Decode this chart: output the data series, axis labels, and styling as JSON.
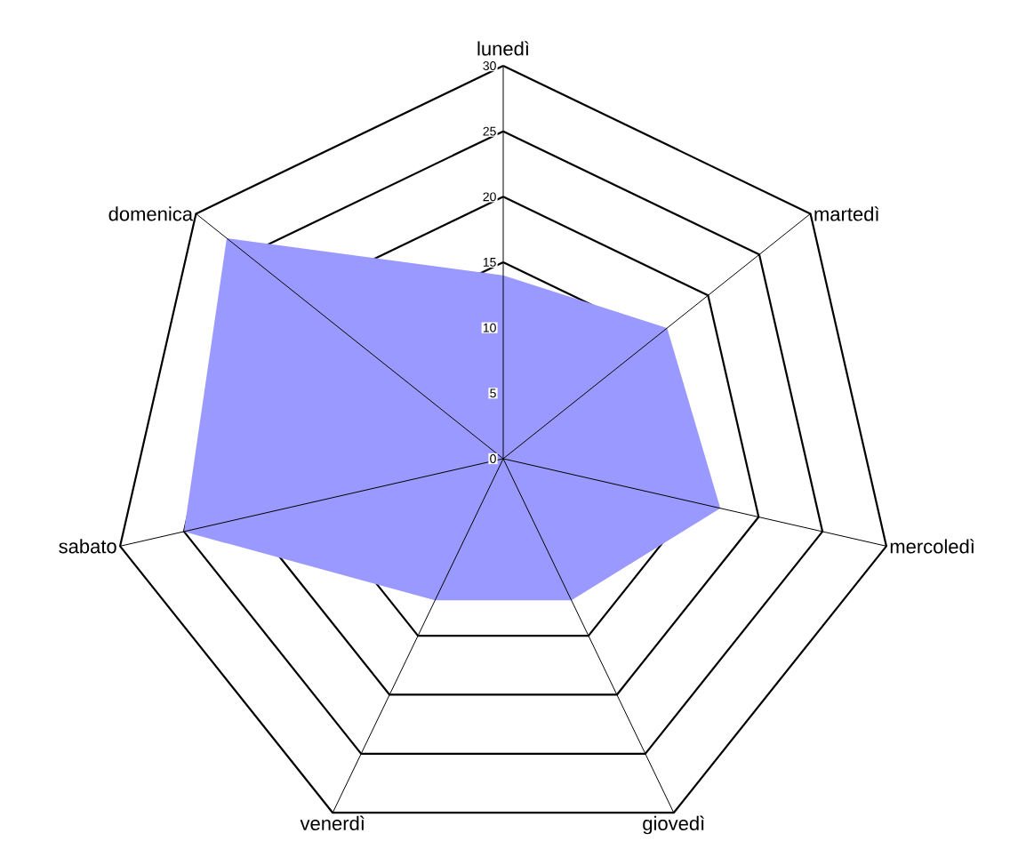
{
  "chart_data": {
    "type": "radar",
    "categories": [
      "lunedì",
      "martedì",
      "mercoledì",
      "giovedì",
      "venerdì",
      "sabato",
      "domenica"
    ],
    "series": [
      {
        "color": "#9999ff",
        "values": [
          14,
          16,
          17,
          12,
          12,
          25,
          27
        ]
      }
    ],
    "ylim": [
      0,
      30
    ],
    "yticks": [
      0,
      5,
      10,
      15,
      20,
      25,
      30
    ],
    "grid": true
  }
}
